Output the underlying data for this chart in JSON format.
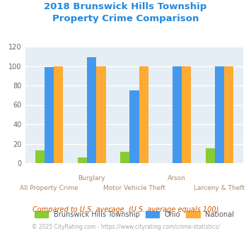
{
  "title": "2018 Brunswick Hills Township\nProperty Crime Comparison",
  "title_color": "#2288dd",
  "categories": [
    "All Property Crime",
    "Burglary",
    "Motor Vehicle Theft",
    "Arson",
    "Larceny & Theft"
  ],
  "x_labels_top": [
    "",
    "Burglary",
    "",
    "Arson",
    ""
  ],
  "x_labels_bottom": [
    "All Property Crime",
    "",
    "Motor Vehicle Theft",
    "",
    "Larceny & Theft"
  ],
  "brunswick": [
    13,
    6,
    12,
    0,
    15
  ],
  "ohio": [
    99,
    109,
    75,
    100,
    100
  ],
  "national": [
    100,
    100,
    100,
    100,
    100
  ],
  "brunswick_color": "#88cc33",
  "ohio_color": "#4499ee",
  "national_color": "#ffaa33",
  "ylim": [
    0,
    120
  ],
  "yticks": [
    0,
    20,
    40,
    60,
    80,
    100,
    120
  ],
  "legend_labels": [
    "Brunswick Hills Township",
    "Ohio",
    "National"
  ],
  "footnote1": "Compared to U.S. average. (U.S. average equals 100)",
  "footnote2": "© 2025 CityRating.com - https://www.cityrating.com/crime-statistics/",
  "footnote1_color": "#cc5500",
  "footnote2_color": "#aaaaaa",
  "bg_color": "#e6eef5",
  "bar_width": 0.22,
  "grid_color": "#ffffff"
}
